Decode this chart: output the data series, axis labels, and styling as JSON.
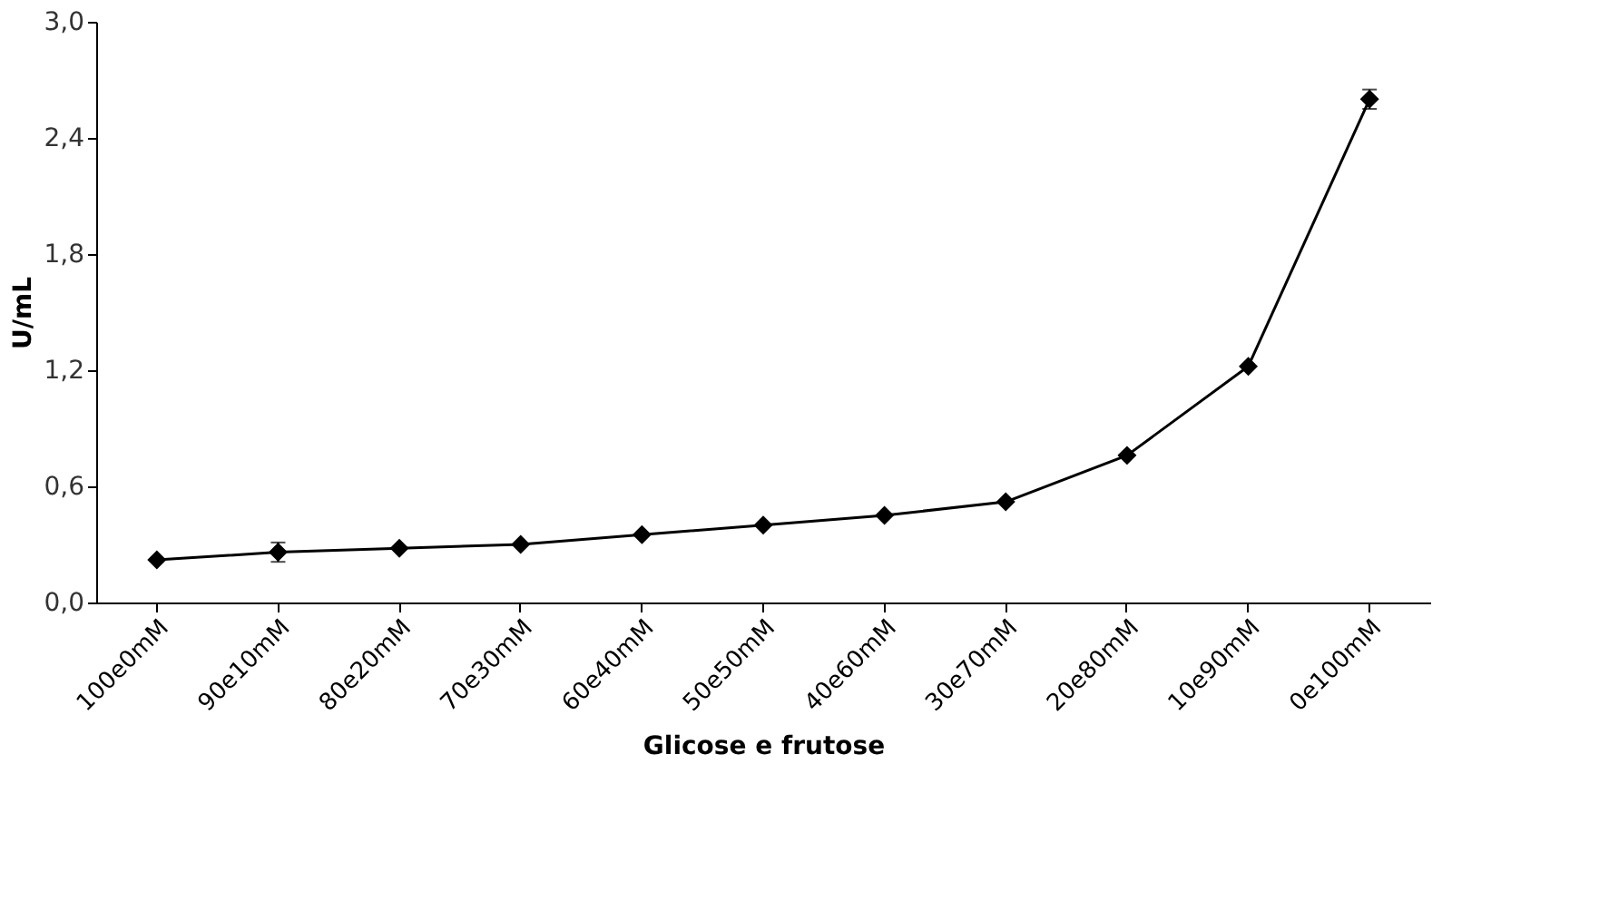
{
  "chart_data": {
    "type": "line",
    "xlabel": "Glicose  e frutose",
    "ylabel": "U/mL",
    "categories": [
      "100e0mM",
      "90e10mM",
      "80e20mM",
      "70e30mM",
      "60e40mM",
      "50e50mM",
      "40e60mM",
      "30e70mM",
      "20e80mM",
      "10e90mM",
      "0e100mM"
    ],
    "series": [
      {
        "color": "#000000",
        "values": [
          0.22,
          0.26,
          0.28,
          0.3,
          0.35,
          0.4,
          0.45,
          0.52,
          0.76,
          1.22,
          2.6
        ],
        "errors": [
          null,
          0.05,
          null,
          null,
          null,
          null,
          null,
          null,
          null,
          null,
          0.05
        ]
      }
    ],
    "ylim": [
      0,
      3
    ],
    "yticks": [
      {
        "value": 0,
        "label": "0,0"
      },
      {
        "value": 0.6,
        "label": "0,6"
      },
      {
        "value": 1.2,
        "label": "1,2"
      },
      {
        "value": 1.8,
        "label": "1,8"
      },
      {
        "value": 2.4,
        "label": "2,4"
      },
      {
        "value": 3,
        "label": "3,0"
      }
    ],
    "grid": false,
    "marker": "diamond",
    "line_style": "solid"
  }
}
